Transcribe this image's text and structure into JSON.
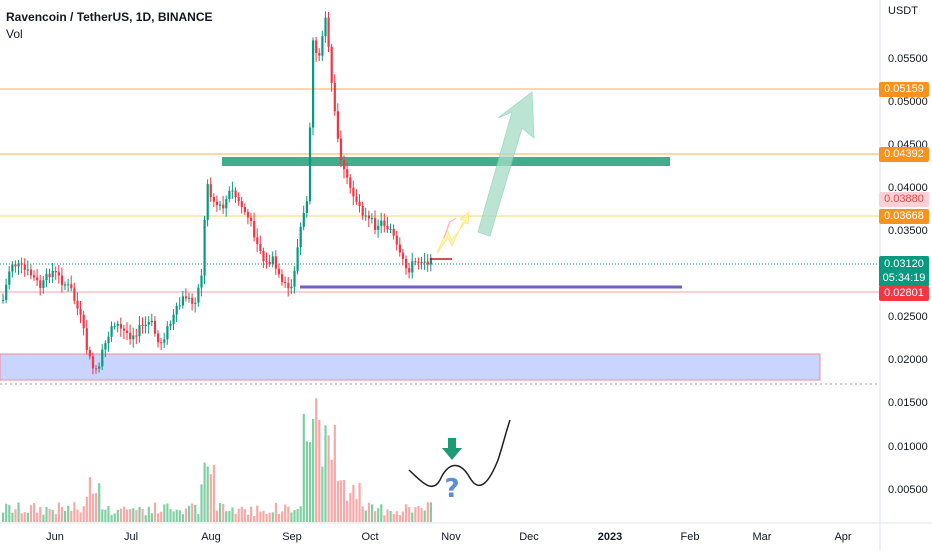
{
  "header": {
    "symbol": "Ravencoin / TetherUS, 1D, BINANCE",
    "volume_label": "Vol"
  },
  "price_axis": {
    "currency": "USDT",
    "ticks": [
      "0.05500",
      "0.05000",
      "0.04500",
      "0.04000",
      "0.03500",
      "0.02500",
      "0.02000",
      "0.01500",
      "0.01000",
      "0.00500"
    ]
  },
  "badges": {
    "level_1": {
      "value": "0.05159",
      "color": "#f7931a"
    },
    "level_2": {
      "value": "0.04392",
      "color": "#f7931a"
    },
    "level_3": {
      "value": "0.03880",
      "color": "#f7c1c7",
      "text_color": "#e5484d"
    },
    "level_4": {
      "value": "0.03668",
      "color": "#f7931a"
    },
    "current": {
      "value": "0.03120",
      "countdown": "05:34:19",
      "color": "#089981"
    },
    "support": {
      "value": "0.02801",
      "color": "#f23645"
    }
  },
  "time_axis": [
    "Jun",
    "Jul",
    "Aug",
    "Sep",
    "Oct",
    "Nov",
    "Dec",
    "2023",
    "Feb",
    "Mar",
    "Apr"
  ],
  "chart_data": {
    "type": "candlestick",
    "instrument": "Ravencoin / TetherUS",
    "timeframe": "1D",
    "exchange": "BINANCE",
    "y_axis_unit": "USDT",
    "ylim": [
      0.0165,
      0.058
    ],
    "horizontal_levels": [
      0.05159,
      0.04392,
      0.0388,
      0.03668,
      0.0312,
      0.02801
    ],
    "zones": [
      {
        "name": "resistance-zone",
        "from": 0.043,
        "to": 0.044,
        "color": "#26a69a"
      },
      {
        "name": "demand-zone",
        "from": 0.0176,
        "to": 0.0207,
        "color": "#c5d3ff"
      }
    ],
    "support_line": 0.029,
    "colors": {
      "up": "#089981",
      "down": "#f23645",
      "vol_up": "#7fcfa3",
      "vol_down": "#f7a9a7"
    }
  }
}
